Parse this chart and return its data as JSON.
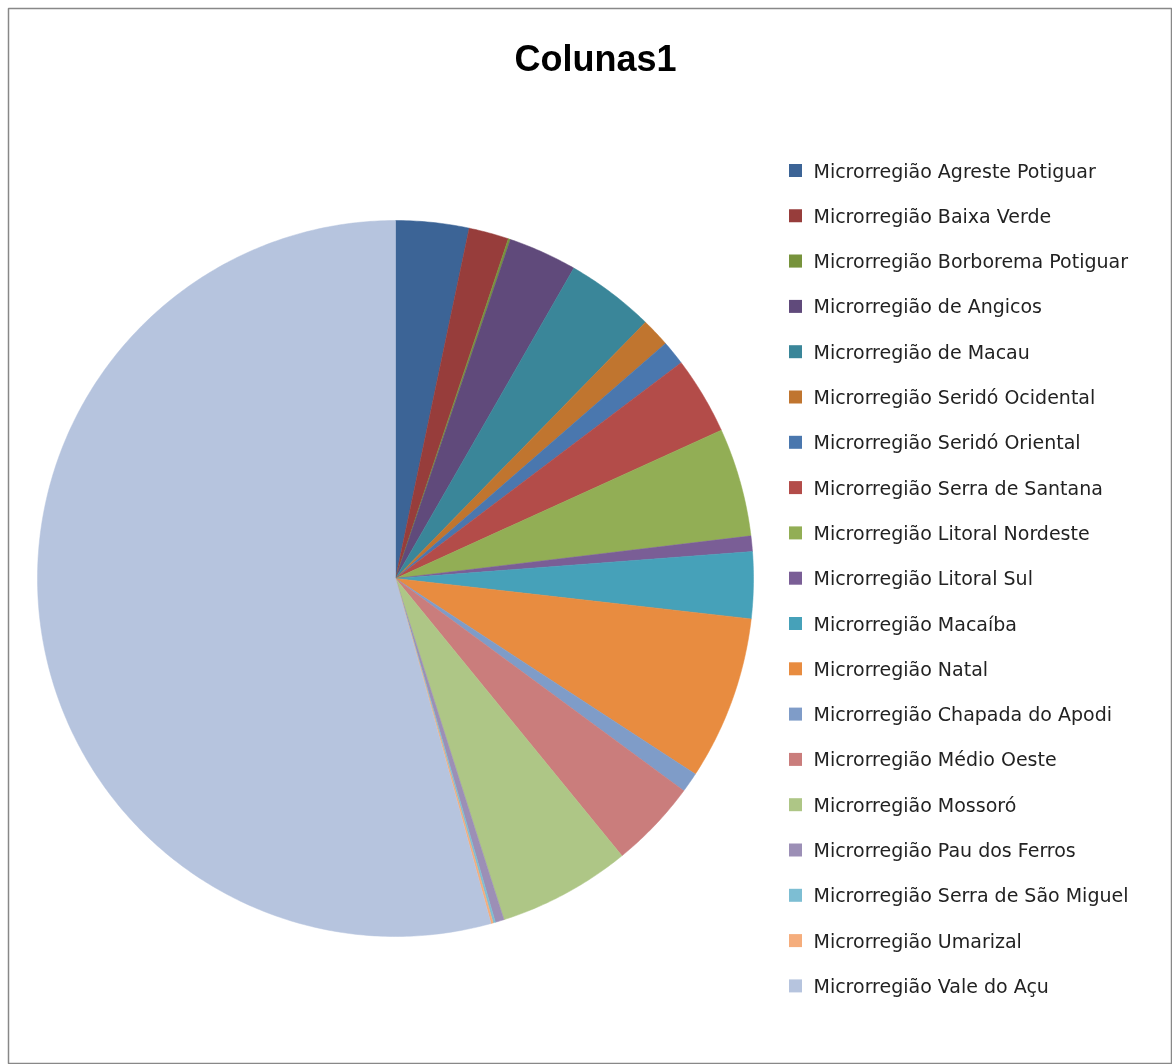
{
  "chart_data": {
    "type": "pie",
    "title": "Colunas1",
    "legend": "right",
    "categories": [
      "Microrregião Agreste Potiguar",
      "Microrregião Baixa Verde",
      "Microrregião Borborema Potiguar",
      "Microrregião de Angicos",
      "Microrregião de Macau",
      "Microrregião Seridó Ocidental",
      "Microrregião Seridó Oriental",
      "Microrregião Serra de Santana",
      "Microrregião Litoral Nordeste",
      "Microrregião Litoral Sul",
      "Microrregião Macaíba",
      "Microrregião Natal",
      "Microrregião Chapada do Apodi",
      "Microrregião Médio Oeste",
      "Microrregião Mossoró",
      "Microrregião Pau dos Ferros",
      "Microrregião Serra de São Miguel",
      "Microrregião Umarizal",
      "Microrregião Vale do Açu"
    ],
    "values": [
      3.3,
      1.8,
      0.1,
      3.1,
      4.0,
      1.3,
      1.1,
      3.5,
      4.9,
      0.7,
      3.0,
      7.4,
      0.9,
      4.0,
      6.0,
      0.4,
      0.1,
      0.1,
      54.3
    ],
    "colors": [
      "#3c6496",
      "#973d3b",
      "#77933c",
      "#604a7b",
      "#3a8699",
      "#c0752f",
      "#4a77ae",
      "#b34c49",
      "#92ae55",
      "#7a5e96",
      "#46a1b9",
      "#e88c40",
      "#7f9cc8",
      "#ca7d7c",
      "#aec686",
      "#9c8fb6",
      "#7dbed3",
      "#f5ad7c",
      "#b6c4de"
    ]
  }
}
